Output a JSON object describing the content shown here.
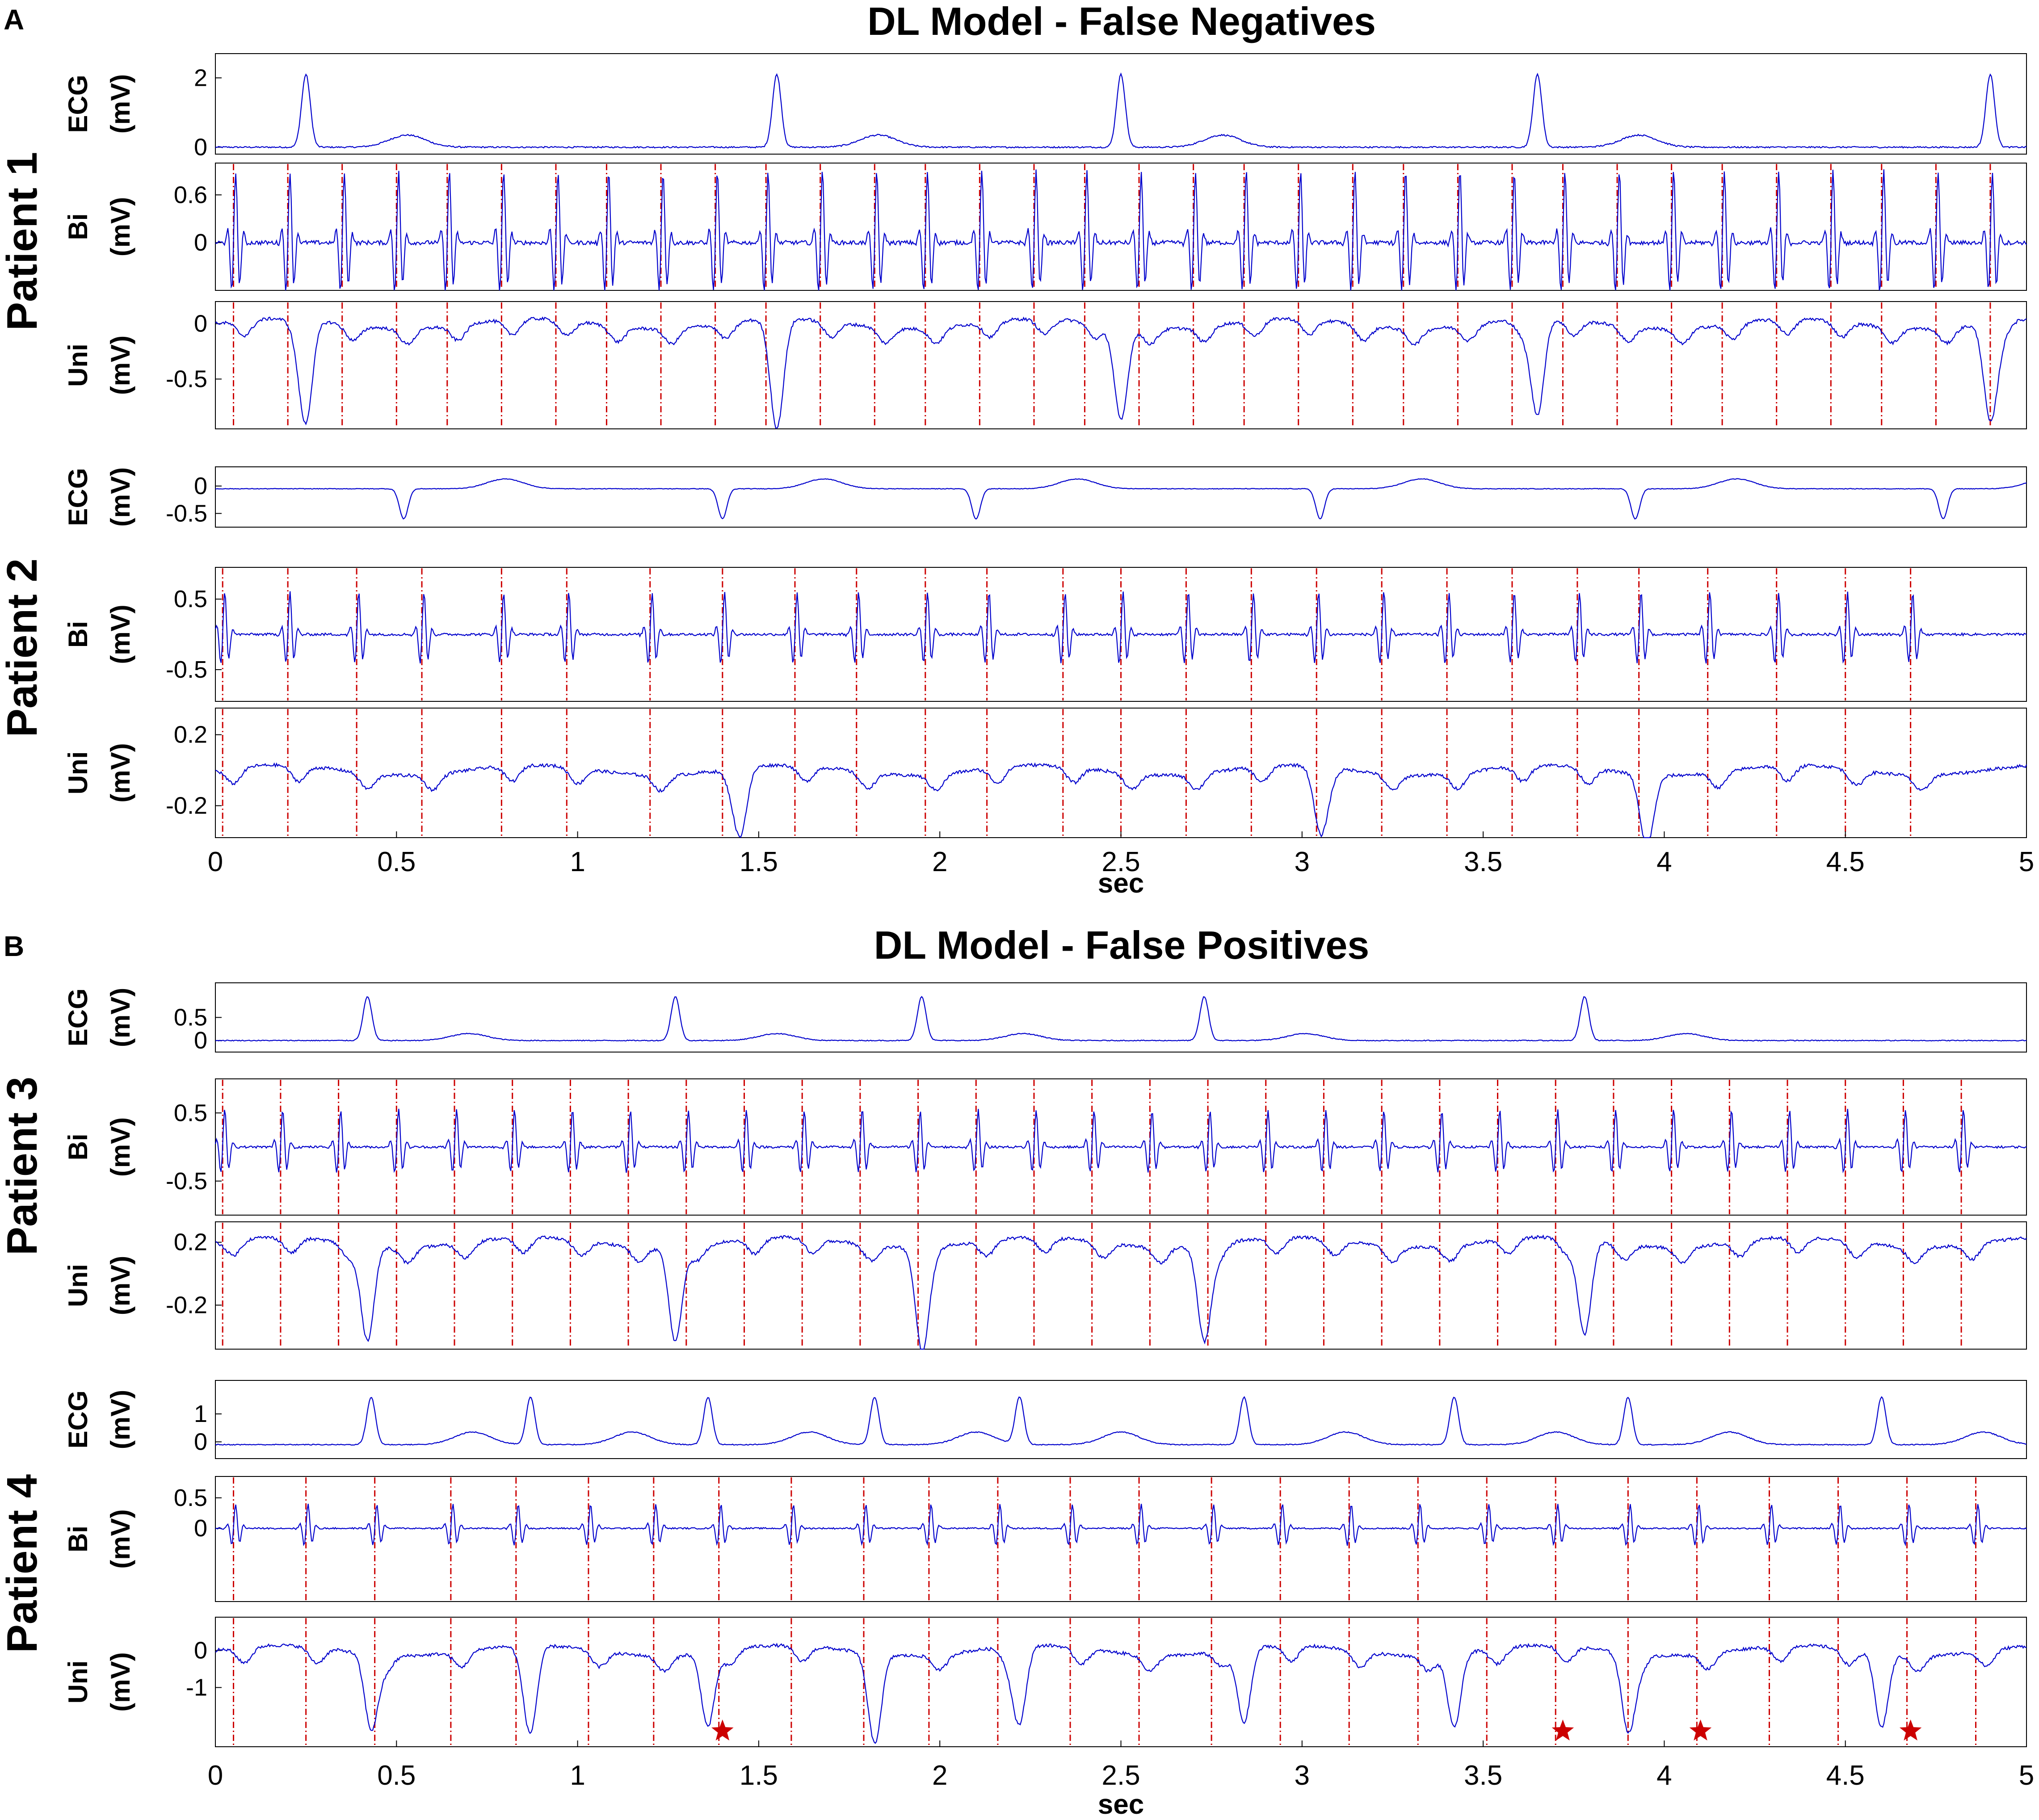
{
  "figure": {
    "panels": [
      {
        "letter": "A",
        "title": "DL Model - False Negatives"
      },
      {
        "letter": "B",
        "title": "DL Model - False Positives"
      }
    ]
  },
  "chart_data": [
    {
      "type": "line",
      "panel": "A",
      "patient": "Patient 1",
      "xlabel": "",
      "xlim": [
        0,
        5
      ],
      "subplots": [
        {
          "channel": "ECG",
          "unit": "(mV)",
          "ylim": [
            -0.2,
            2.7
          ],
          "yticks": [
            0,
            2
          ],
          "beats": [
            0.25,
            1.55,
            2.5,
            3.65,
            4.9
          ],
          "beat_amp": 2.1,
          "t_wave_amp": 0.35,
          "baseline": 0
        },
        {
          "channel": "Bi",
          "unit": "(mV)",
          "ylim": [
            -0.6,
            1.0
          ],
          "yticks": [
            0,
            0.6
          ],
          "activations": [
            0.05,
            0.2,
            0.35,
            0.5,
            0.64,
            0.79,
            0.94,
            1.08,
            1.23,
            1.38,
            1.52,
            1.67,
            1.82,
            1.96,
            2.11,
            2.26,
            2.4,
            2.55,
            2.7,
            2.84,
            2.99,
            3.14,
            3.28,
            3.43,
            3.58,
            3.72,
            3.87,
            4.02,
            4.16,
            4.31,
            4.46,
            4.6,
            4.75,
            4.9
          ],
          "spike_amp": 0.9,
          "baseline": 0
        },
        {
          "channel": "Uni",
          "unit": "(mV)",
          "ylim": [
            -0.95,
            0.2
          ],
          "yticks": [
            0,
            -0.5
          ],
          "activations": [
            0.05,
            0.2,
            0.35,
            0.5,
            0.64,
            0.79,
            0.94,
            1.08,
            1.23,
            1.38,
            1.52,
            1.67,
            1.82,
            1.96,
            2.11,
            2.26,
            2.4,
            2.55,
            2.7,
            2.84,
            2.99,
            3.14,
            3.28,
            3.43,
            3.58,
            3.72,
            3.87,
            4.02,
            4.16,
            4.31,
            4.46,
            4.6,
            4.75,
            4.9
          ],
          "deep_deflections": [
            0.25,
            1.55,
            2.5,
            3.65,
            4.9
          ],
          "deep_amp": -0.85,
          "baseline": 0
        }
      ]
    },
    {
      "type": "line",
      "panel": "A",
      "patient": "Patient 2",
      "xlabel": "sec",
      "xlim": [
        0,
        5
      ],
      "xticks": [
        "0",
        "0.5",
        "1",
        "1.5",
        "2",
        "2.5",
        "3",
        "3.5",
        "4",
        "4.5",
        "5"
      ],
      "subplots": [
        {
          "channel": "ECG",
          "unit": "(mV)",
          "ylim": [
            -0.75,
            0.35
          ],
          "yticks": [
            0,
            -0.5
          ],
          "beats": [
            0.52,
            1.4,
            2.1,
            3.05,
            3.92,
            4.77
          ],
          "beat_amp": -0.55,
          "t_wave_amp": 0.18,
          "baseline": -0.05
        },
        {
          "channel": "Bi",
          "unit": "(mV)",
          "ylim": [
            -0.95,
            0.95
          ],
          "yticks": [
            0.5,
            -0.5
          ],
          "activations": [
            0.02,
            0.2,
            0.39,
            0.57,
            0.79,
            0.97,
            1.2,
            1.4,
            1.6,
            1.77,
            1.96,
            2.13,
            2.34,
            2.5,
            2.68,
            2.86,
            3.04,
            3.22,
            3.4,
            3.58,
            3.76,
            3.93,
            4.12,
            4.31,
            4.5,
            4.68
          ],
          "spike_amp": 0.6,
          "baseline": 0
        },
        {
          "channel": "Uni",
          "unit": "(mV)",
          "ylim": [
            -0.38,
            0.35
          ],
          "yticks": [
            0.2,
            -0.2
          ],
          "activations": [
            0.02,
            0.2,
            0.39,
            0.57,
            0.79,
            0.97,
            1.2,
            1.4,
            1.6,
            1.77,
            1.96,
            2.13,
            2.34,
            2.5,
            2.68,
            2.86,
            3.04,
            3.22,
            3.4,
            3.58,
            3.76,
            3.93,
            4.12,
            4.31,
            4.5,
            4.68
          ],
          "deep_deflections": [
            1.45,
            3.05,
            3.95
          ],
          "deep_amp": -0.33,
          "baseline": 0
        }
      ]
    },
    {
      "type": "line",
      "panel": "B",
      "patient": "Patient 3",
      "xlabel": "",
      "xlim": [
        0,
        5
      ],
      "subplots": [
        {
          "channel": "ECG",
          "unit": "(mV)",
          "ylim": [
            -0.25,
            1.25
          ],
          "yticks": [
            0.5,
            0
          ],
          "beats": [
            0.42,
            1.27,
            1.95,
            2.73,
            3.78
          ],
          "beat_amp": 0.95,
          "t_wave_amp": 0.15,
          "baseline": 0
        },
        {
          "channel": "Bi",
          "unit": "(mV)",
          "ylim": [
            -1.0,
            1.0
          ],
          "yticks": [
            0.5,
            -0.5
          ],
          "activations": [
            0.02,
            0.18,
            0.34,
            0.5,
            0.66,
            0.82,
            0.98,
            1.14,
            1.3,
            1.46,
            1.62,
            1.78,
            1.94,
            2.1,
            2.26,
            2.42,
            2.58,
            2.74,
            2.9,
            3.06,
            3.22,
            3.38,
            3.54,
            3.7,
            3.86,
            4.02,
            4.18,
            4.34,
            4.5,
            4.66,
            4.82
          ],
          "spike_amp": 0.55,
          "baseline": 0
        },
        {
          "channel": "Uni",
          "unit": "(mV)",
          "ylim": [
            -0.48,
            0.33
          ],
          "yticks": [
            0.2,
            -0.2
          ],
          "activations": [
            0.02,
            0.18,
            0.34,
            0.5,
            0.66,
            0.82,
            0.98,
            1.14,
            1.3,
            1.46,
            1.62,
            1.78,
            1.94,
            2.1,
            2.26,
            2.42,
            2.58,
            2.74,
            2.9,
            3.06,
            3.22,
            3.38,
            3.54,
            3.7,
            3.86,
            4.02,
            4.18,
            4.34,
            4.5,
            4.66,
            4.82
          ],
          "deep_deflections": [
            0.42,
            1.27,
            1.95,
            2.73,
            3.78
          ],
          "deep_amp": -0.4,
          "baseline": 0.2
        }
      ]
    },
    {
      "type": "line",
      "panel": "B",
      "patient": "Patient 4",
      "xlabel": "sec",
      "xlim": [
        0,
        5
      ],
      "xticks": [
        "0",
        "0.5",
        "1",
        "1.5",
        "2",
        "2.5",
        "3",
        "3.5",
        "4",
        "4.5",
        "5"
      ],
      "subplots": [
        {
          "channel": "ECG",
          "unit": "(mV)",
          "ylim": [
            -0.6,
            2.2
          ],
          "yticks": [
            1,
            0
          ],
          "beats": [
            0.43,
            0.87,
            1.36,
            1.82,
            2.22,
            2.84,
            3.42,
            3.9,
            4.6
          ],
          "beat_amp": 1.7,
          "t_wave_amp": 0.45,
          "baseline": -0.1
        },
        {
          "channel": "Bi",
          "unit": "(mV)",
          "ylim": [
            -1.2,
            0.85
          ],
          "yticks": [
            0.5,
            0
          ],
          "activations": [
            0.05,
            0.25,
            0.44,
            0.65,
            0.83,
            1.03,
            1.21,
            1.39,
            1.59,
            1.79,
            1.97,
            2.16,
            2.36,
            2.55,
            2.75,
            2.94,
            3.13,
            3.32,
            3.51,
            3.7,
            3.9,
            4.09,
            4.29,
            4.48,
            4.67,
            4.86
          ],
          "spike_amp": 0.4,
          "baseline": 0
        },
        {
          "channel": "Uni",
          "unit": "(mV)",
          "ylim": [
            -2.6,
            0.9
          ],
          "yticks": [
            0,
            -1
          ],
          "activations": [
            0.05,
            0.25,
            0.44,
            0.65,
            0.83,
            1.03,
            1.21,
            1.39,
            1.59,
            1.79,
            1.97,
            2.16,
            2.36,
            2.55,
            2.75,
            2.94,
            3.13,
            3.32,
            3.51,
            3.7,
            3.9,
            4.09,
            4.29,
            4.48,
            4.67,
            4.86
          ],
          "deep_deflections": [
            0.43,
            0.87,
            1.36,
            1.82,
            2.22,
            2.84,
            3.42,
            3.9,
            4.6
          ],
          "deep_amp": -2.0,
          "baseline": 0,
          "stars": [
            1.4,
            3.72,
            4.1,
            4.68
          ],
          "star_color": "#cc0000"
        }
      ]
    }
  ],
  "colors": {
    "signal": "#0000cc",
    "activation_line": "#cc0000",
    "axes": "#000000"
  }
}
